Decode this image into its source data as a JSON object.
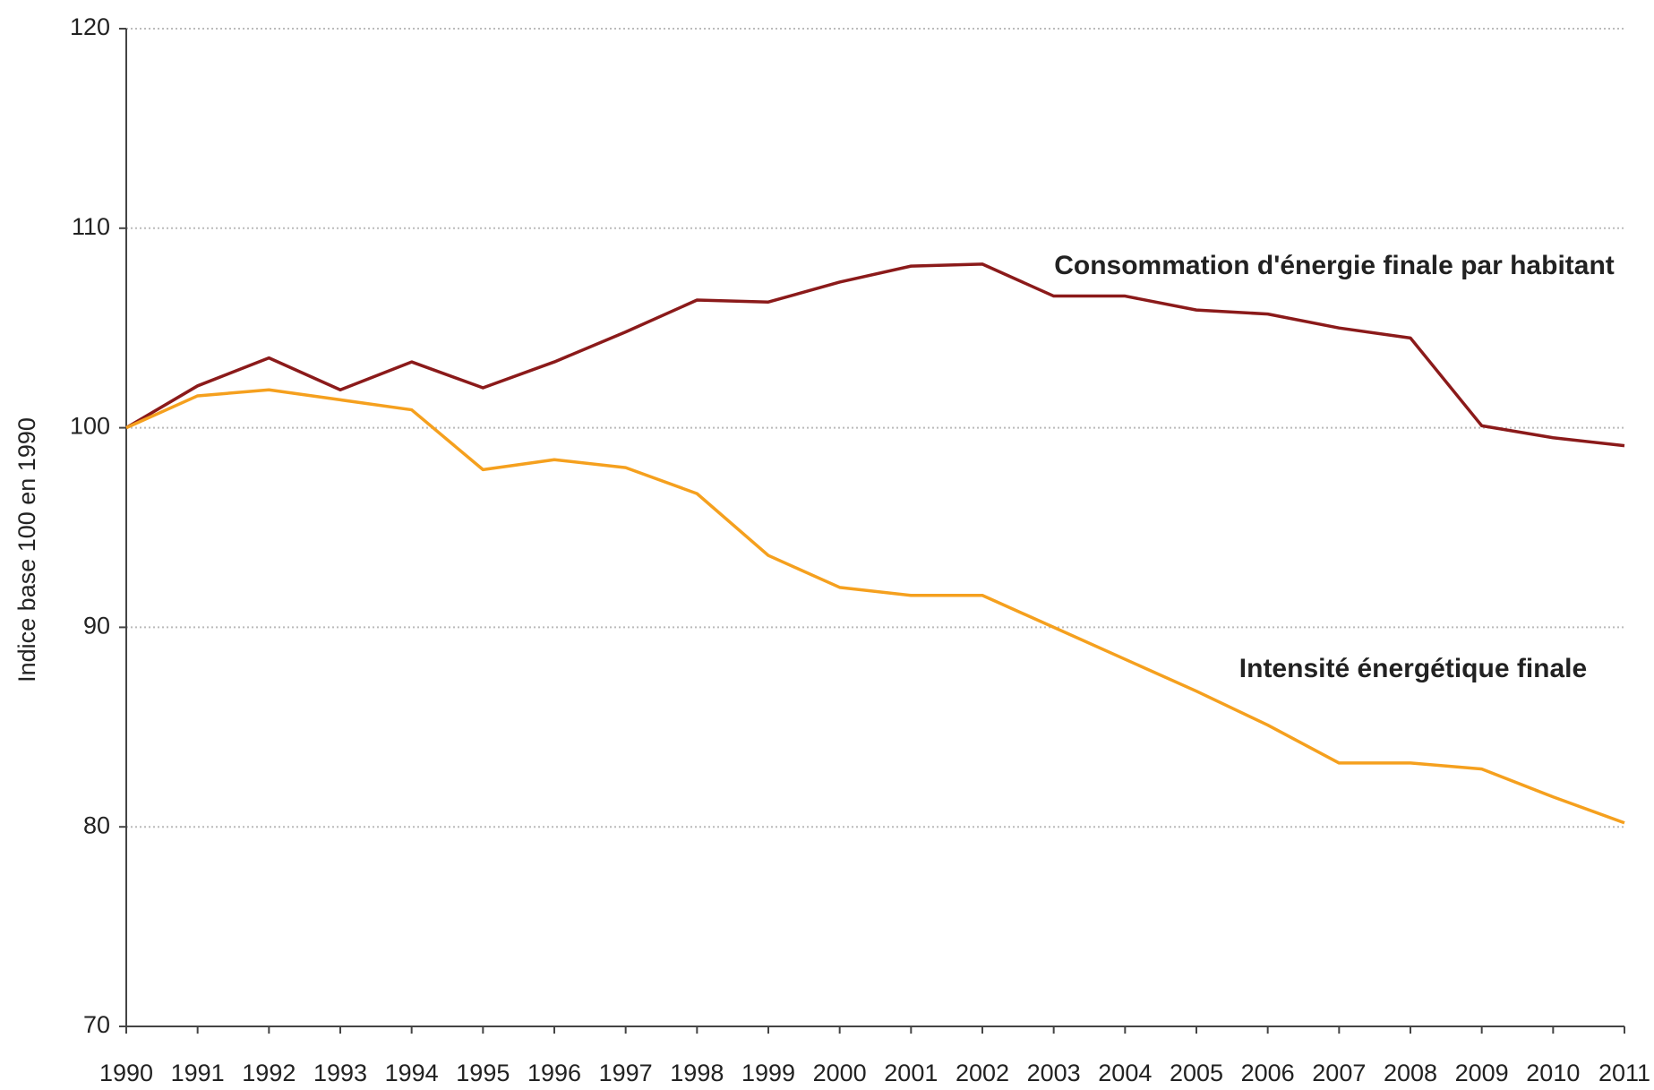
{
  "chart_data": {
    "type": "line",
    "y_label": "Indice base 100 en 1990",
    "x": [
      1990,
      1991,
      1992,
      1993,
      1994,
      1995,
      1996,
      1997,
      1998,
      1999,
      2000,
      2001,
      2002,
      2003,
      2004,
      2005,
      2006,
      2007,
      2008,
      2009,
      2010,
      2011
    ],
    "series": [
      {
        "name": "Consommation d'énergie finale par habitant",
        "color": "#8b1a1a",
        "values": [
          100,
          102.1,
          103.5,
          101.9,
          103.3,
          102.0,
          103.3,
          104.8,
          106.4,
          106.3,
          107.3,
          108.1,
          108.2,
          106.6,
          106.6,
          105.9,
          105.7,
          105.0,
          104.5,
          100.1,
          99.5,
          99.1
        ]
      },
      {
        "name": "Intensité énergétique finale",
        "color": "#f5a01e",
        "values": [
          100,
          101.6,
          101.9,
          101.4,
          100.9,
          97.9,
          98.4,
          98.0,
          96.7,
          93.6,
          92.0,
          91.6,
          91.6,
          90.0,
          88.4,
          86.8,
          85.1,
          83.2,
          83.2,
          82.9,
          81.5,
          80.2
        ]
      }
    ],
    "xlim": [
      1990,
      2011
    ],
    "xticks": [
      1990,
      1991,
      1992,
      1993,
      1994,
      1995,
      1996,
      1997,
      1998,
      1999,
      2000,
      2001,
      2002,
      2003,
      2004,
      2005,
      2006,
      2007,
      2008,
      2009,
      2010,
      2011
    ],
    "ylim": [
      70,
      120
    ],
    "yticks": [
      70,
      80,
      90,
      100,
      110,
      120
    ],
    "grid": true
  }
}
